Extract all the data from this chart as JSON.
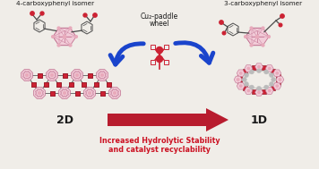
{
  "bg_color": "#f0ede8",
  "title_left": "4-carboxyphenyl isomer",
  "title_right": "3-carboxyphenyl isomer",
  "center_top_label_line1": "Cu₂-paddle",
  "center_top_label_line2": "wheel",
  "label_2d": "2D",
  "label_1d": "1D",
  "bottom_text_line1": "Increased Hydrolytic Stability",
  "bottom_text_line2": "and catalyst recyclability",
  "arrow_blue": "#1a44cc",
  "arrow_red": "#b81c2e",
  "text_red": "#cc1122",
  "text_black": "#1a1a1a",
  "pink_fill": "#e8aabb",
  "pink_light": "#f2ccd8",
  "pink_edge": "#c07090",
  "gray_dark": "#4a4a4a",
  "gray_mid": "#888888",
  "red_cu": "#cc2233",
  "white": "#ffffff",
  "bond_gray": "#666666"
}
